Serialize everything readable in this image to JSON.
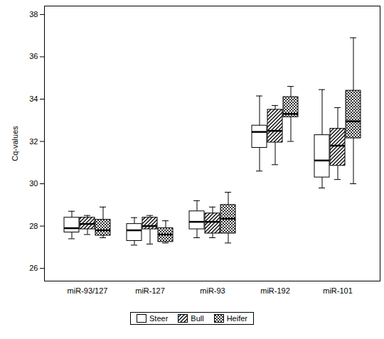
{
  "chart_data": {
    "type": "box",
    "y_label": "Cq-values",
    "categories": [
      "miR-93/127",
      "miR-127",
      "miR-93",
      "miR-192",
      "miR-101"
    ],
    "series": [
      {
        "name": "Steer",
        "color": "#ffffff",
        "marker": "none",
        "values": [
          {
            "min": 27.4,
            "q1": 27.7,
            "median": 27.9,
            "q3": 28.4,
            "max": 28.7
          },
          {
            "min": 27.1,
            "q1": 27.3,
            "median": 27.8,
            "q3": 28.1,
            "max": 28.4
          },
          {
            "min": 27.45,
            "q1": 27.85,
            "median": 28.2,
            "q3": 28.7,
            "max": 29.2
          },
          {
            "min": 30.6,
            "q1": 31.7,
            "median": 32.45,
            "q3": 32.75,
            "max": 34.15
          },
          {
            "min": 29.8,
            "q1": 30.3,
            "median": 31.1,
            "q3": 32.3,
            "max": 34.45
          }
        ]
      },
      {
        "name": "Bull",
        "color": "#ffffff",
        "marker": "diagonal",
        "values": [
          {
            "min": 27.6,
            "q1": 27.85,
            "median": 28.1,
            "q3": 28.4,
            "max": 28.5
          },
          {
            "min": 27.15,
            "q1": 27.85,
            "median": 28.0,
            "q3": 28.4,
            "max": 28.5
          },
          {
            "min": 27.45,
            "q1": 27.65,
            "median": 28.2,
            "q3": 28.6,
            "max": 28.9
          },
          {
            "min": 30.9,
            "q1": 31.95,
            "median": 32.5,
            "q3": 33.5,
            "max": 33.7
          },
          {
            "min": 30.2,
            "q1": 30.85,
            "median": 31.8,
            "q3": 32.6,
            "max": 33.6
          }
        ]
      },
      {
        "name": "Heifer",
        "color": "#ffffff",
        "marker": "crosshatch",
        "values": [
          {
            "min": 27.45,
            "q1": 27.55,
            "median": 27.8,
            "q3": 28.3,
            "max": 28.9
          },
          {
            "min": 27.2,
            "q1": 27.25,
            "median": 27.6,
            "q3": 27.9,
            "max": 28.25
          },
          {
            "min": 27.2,
            "q1": 27.65,
            "median": 28.35,
            "q3": 29.0,
            "max": 29.6
          },
          {
            "min": 32.0,
            "q1": 33.15,
            "median": 33.3,
            "q3": 34.1,
            "max": 34.6
          },
          {
            "min": 30.0,
            "q1": 32.15,
            "median": 32.95,
            "q3": 34.4,
            "max": 36.9
          }
        ]
      }
    ],
    "ylim": [
      25.4,
      38.4
    ],
    "yticks": [
      26,
      28,
      30,
      32,
      34,
      36,
      38
    ],
    "grid": false,
    "legend": "bottom"
  }
}
